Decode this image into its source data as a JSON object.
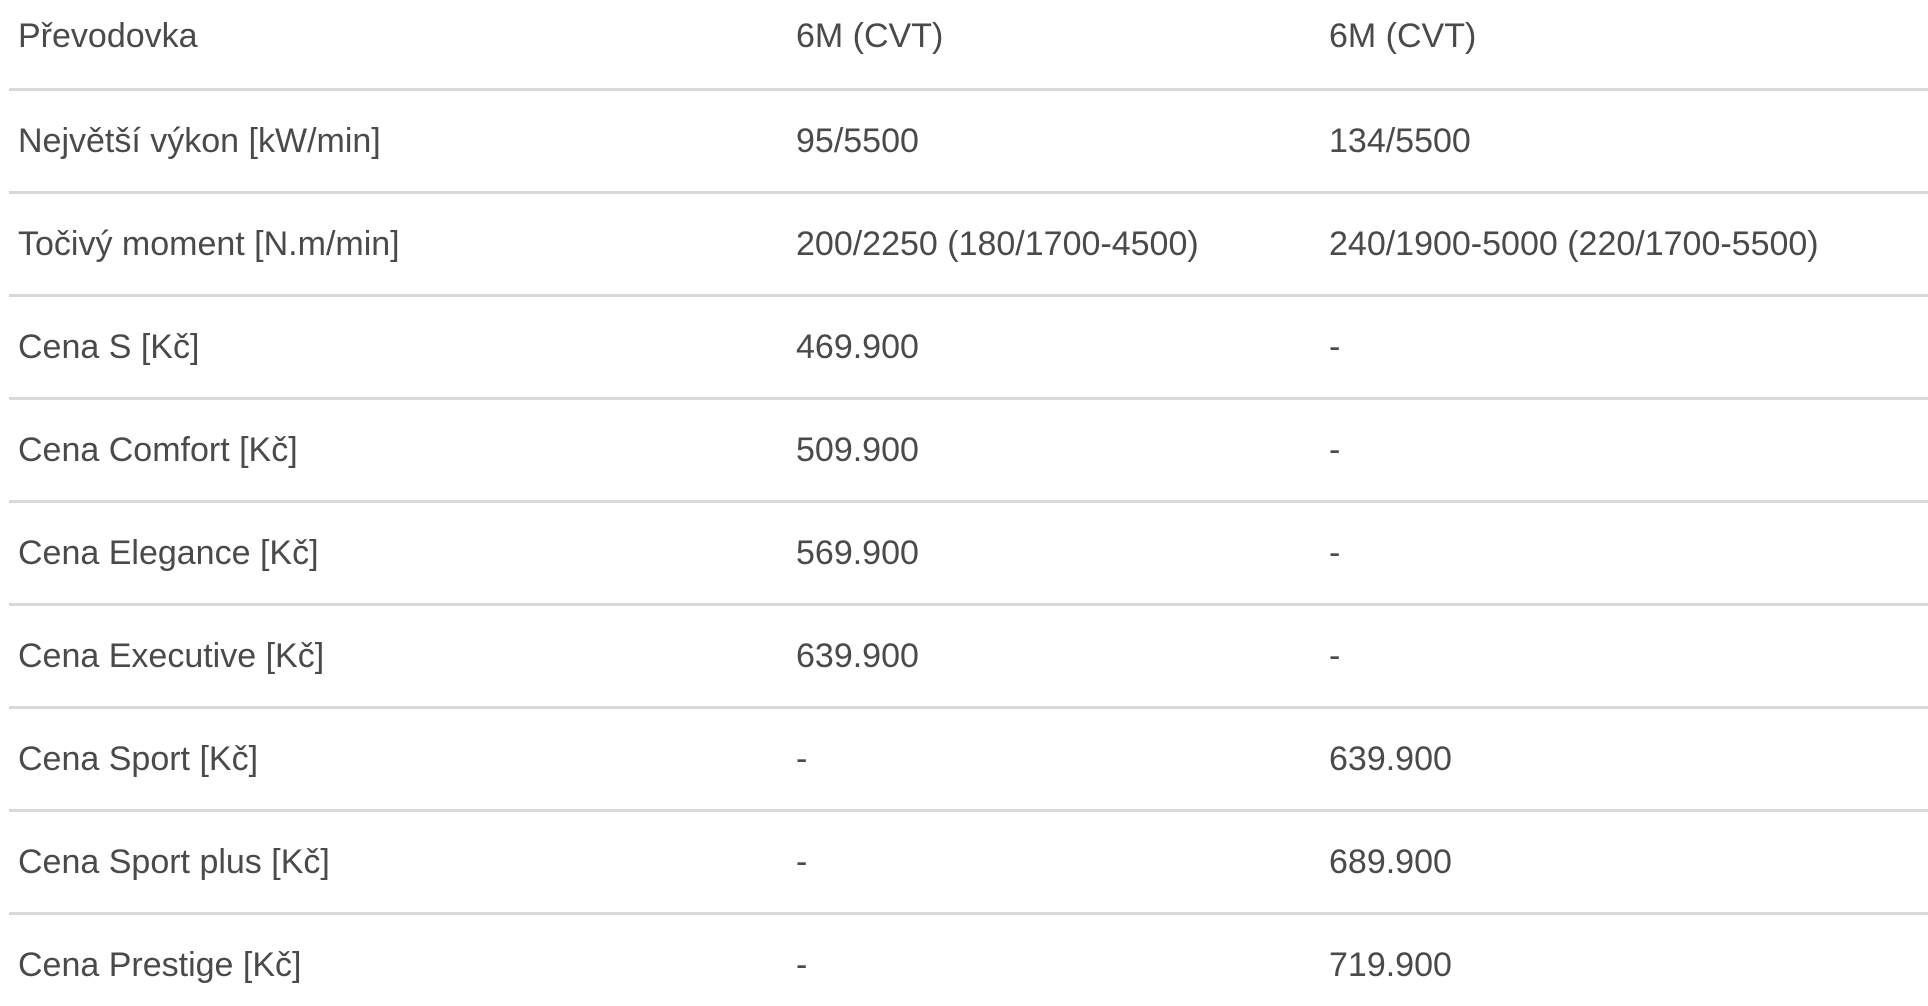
{
  "colors": {
    "background": "#ffffff",
    "text": "#4a4a4a",
    "divider": "#d9d9d9"
  },
  "table": {
    "rows": [
      {
        "label": "Převodovka",
        "v1": "6M (CVT)",
        "v2": "6M (CVT)"
      },
      {
        "label": "Největší výkon [kW/min]",
        "v1": "95/5500",
        "v2": "134/5500"
      },
      {
        "label": "Točivý moment [N.m/min]",
        "v1": "200/2250 (180/1700-4500)",
        "v2": "240/1900-5000 (220/1700-5500)"
      },
      {
        "label": "Cena S [Kč]",
        "v1": "469.900",
        "v2": "-"
      },
      {
        "label": "Cena Comfort [Kč]",
        "v1": "509.900",
        "v2": "-"
      },
      {
        "label": "Cena Elegance [Kč]",
        "v1": "569.900",
        "v2": "-"
      },
      {
        "label": "Cena Executive [Kč]",
        "v1": "639.900",
        "v2": "-"
      },
      {
        "label": "Cena Sport [Kč]",
        "v1": "-",
        "v2": "639.900"
      },
      {
        "label": "Cena Sport plus [Kč]",
        "v1": "-",
        "v2": "689.900"
      },
      {
        "label": "Cena Prestige [Kč]",
        "v1": "-",
        "v2": "719.900"
      }
    ]
  }
}
